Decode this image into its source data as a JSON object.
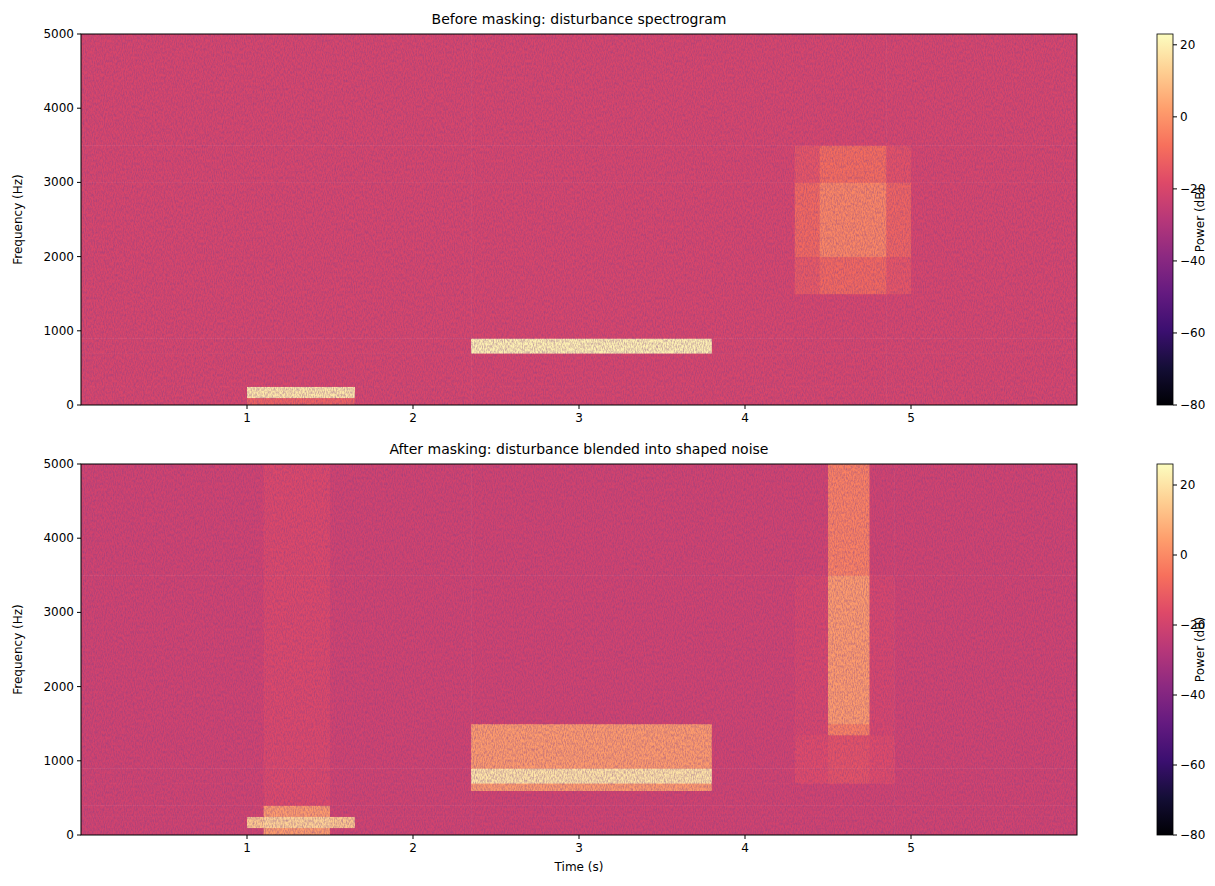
{
  "chart_data": [
    {
      "type": "heatmap",
      "title": "Before masking: disturbance spectrogram",
      "y_label": "Frequency (Hz)",
      "color": "magma",
      "xlim": [
        0,
        6
      ],
      "xticks": [
        1,
        2,
        3,
        4,
        5
      ],
      "ylim": [
        0,
        5000
      ],
      "yticks": [
        0,
        1000,
        2000,
        3000,
        4000,
        5000
      ],
      "x_edges": [
        0,
        1.0,
        1.65,
        2.35,
        3.8,
        4.3,
        4.45,
        4.85,
        5.0,
        6
      ],
      "y_edges": [
        0,
        100,
        250,
        700,
        900,
        1500,
        2000,
        3000,
        3500,
        5000
      ],
      "cells": [
        [
          -20,
          -12,
          -20,
          -20,
          -20,
          -20,
          -20,
          -20,
          -20
        ],
        [
          -20,
          18,
          -20,
          -20,
          -20,
          -20,
          -20,
          -20,
          -20
        ],
        [
          -20,
          -20,
          -20,
          -20,
          -20,
          -20,
          -20,
          -20,
          -20
        ],
        [
          -20,
          -20,
          -20,
          20,
          -20,
          -20,
          -20,
          -20,
          -20
        ],
        [
          -20,
          -20,
          -20,
          -20,
          -20,
          -20,
          -20,
          -20,
          -20
        ],
        [
          -20,
          -20,
          -20,
          -20,
          -20,
          -14,
          -10,
          -15,
          -20
        ],
        [
          -20,
          -20,
          -20,
          -20,
          -20,
          -10,
          -3,
          -11,
          -20
        ],
        [
          -20,
          -20,
          -20,
          -20,
          -20,
          -15,
          -9,
          -16,
          -20
        ],
        [
          -20,
          -20,
          -20,
          -20,
          -20,
          -20,
          -20,
          -20,
          -20
        ]
      ],
      "colorbar_label": "Power (dB)",
      "colorbar_lim": [
        -80,
        23
      ],
      "colorbar_ticks": [
        {
          "value": -80,
          "label": "−80"
        },
        {
          "value": -60,
          "label": "−60"
        },
        {
          "value": -40,
          "label": "−40"
        },
        {
          "value": -20,
          "label": "−20"
        },
        0,
        20
      ]
    },
    {
      "type": "heatmap",
      "title": "After masking: disturbance blended into shaped noise",
      "x_label": "Time (s)",
      "y_label": "Frequency (Hz)",
      "color": "magma",
      "xlim": [
        0,
        6
      ],
      "xticks": [
        1,
        2,
        3,
        4,
        5
      ],
      "ylim": [
        0,
        5000
      ],
      "yticks": [
        0,
        1000,
        2000,
        3000,
        4000,
        5000
      ],
      "x_edges": [
        0,
        1.0,
        1.1,
        1.5,
        1.65,
        2.35,
        3.8,
        4.3,
        4.5,
        4.75,
        4.9,
        6
      ],
      "y_edges": [
        0,
        100,
        250,
        400,
        600,
        700,
        900,
        1350,
        1500,
        3500,
        5000
      ],
      "cells": [
        [
          -20,
          -20,
          4,
          -20,
          -20,
          -20,
          -20,
          -20,
          -20,
          -20,
          -20
        ],
        [
          -20,
          14,
          16,
          14,
          -20,
          -20,
          -20,
          -20,
          -20,
          -20,
          -20
        ],
        [
          -20,
          -20,
          4,
          -20,
          -20,
          -20,
          -20,
          -20,
          -20,
          -20,
          -20
        ],
        [
          -20,
          -20,
          -17,
          -20,
          -20,
          -20,
          -20,
          -20,
          -20,
          -20,
          -20
        ],
        [
          -20,
          -20,
          -17,
          -20,
          -20,
          4,
          -20,
          -20,
          -20,
          -20,
          -20
        ],
        [
          -20,
          -20,
          -17,
          -20,
          -20,
          20,
          -20,
          -16,
          -14,
          -16,
          -20
        ],
        [
          -20,
          -20,
          -17,
          -20,
          -20,
          4,
          -20,
          -16,
          -14,
          -16,
          -20
        ],
        [
          -20,
          -20,
          -17,
          -20,
          -20,
          4,
          -20,
          -18,
          -2,
          -18,
          -20
        ],
        [
          -20,
          -20,
          -17,
          -20,
          -20,
          -20,
          -20,
          -18,
          4,
          -18,
          -20
        ],
        [
          -20,
          -20,
          -17,
          -20,
          -20,
          -20,
          -20,
          -20,
          -2,
          -20,
          -20
        ]
      ],
      "colorbar_label": "Power (dB)",
      "colorbar_lim": [
        -80,
        26
      ],
      "colorbar_ticks": [
        {
          "value": -80,
          "label": "−80"
        },
        {
          "value": -60,
          "label": "−60"
        },
        {
          "value": -40,
          "label": "−40"
        },
        {
          "value": -20,
          "label": "−20"
        },
        0,
        20
      ]
    }
  ]
}
